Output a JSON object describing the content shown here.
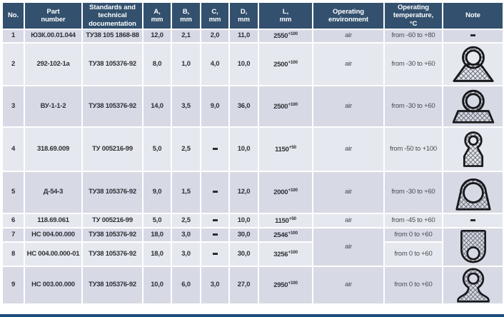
{
  "colors": {
    "header_bg": "#33516e",
    "row_odd": "#d7dae4",
    "row_even": "#e6e8ef",
    "accent_bar": "#1d4e7c",
    "grid": "#ffffff"
  },
  "table": {
    "columns": [
      {
        "key": "no",
        "label": "No."
      },
      {
        "key": "part",
        "label": "Part\nnumber"
      },
      {
        "key": "standard",
        "label": "Standards and\ntechnical\ndocumentation"
      },
      {
        "key": "a",
        "label": "A,\nmm"
      },
      {
        "key": "b",
        "label": "B,\nmm"
      },
      {
        "key": "c",
        "label": "C,\nmm"
      },
      {
        "key": "d",
        "label": "D,\nmm"
      },
      {
        "key": "l",
        "label": "L,\nmm"
      },
      {
        "key": "env",
        "label": "Operating\nenvironment"
      },
      {
        "key": "temp",
        "label": "Operating\ntemperature,\n°C"
      },
      {
        "key": "note",
        "label": "Note"
      }
    ],
    "rows": [
      {
        "no": "1",
        "part": "Ю3К.00.01.044",
        "standard": "ТУ38 105 1868-88",
        "a": "12,0",
        "b": "2,1",
        "c": "2,0",
        "d": "11,0",
        "l": "2550",
        "l_sup": "+100",
        "env": "air",
        "temp": "from -60 to +80",
        "note": {
          "kind": "dash",
          "value": "-"
        }
      },
      {
        "no": "2",
        "part": "292-102-1a",
        "standard": "ТУ38 105376-92",
        "a": "8,0",
        "b": "1,0",
        "c": "4,0",
        "d": "10,0",
        "l": "2500",
        "l_sup": "+100",
        "env": "air",
        "temp": "from -30 to +60",
        "note": {
          "kind": "icon",
          "icon": "ring-over-wedge-seal-profile"
        }
      },
      {
        "no": "3",
        "part": "ВУ-1-1-2",
        "standard": "ТУ38 105376-92",
        "a": "14,0",
        "b": "3,5",
        "c": "9,0",
        "d": "36,0",
        "l": "2500",
        "l_sup": "+100",
        "env": "air",
        "temp": "from -30 to +60",
        "note": {
          "kind": "icon",
          "icon": "ring-over-flat-base-seal-profile"
        }
      },
      {
        "no": "4",
        "part": "318.69.009",
        "standard": "ТУ 005216-99",
        "a": "5,0",
        "b": "2,5",
        "c": "-",
        "d": "10,0",
        "l": "1150",
        "l_sup": "+50",
        "env": "air",
        "temp": "from -50 to +100",
        "note": {
          "kind": "icon",
          "icon": "round-head-tag-seal-profile"
        }
      },
      {
        "no": "5",
        "part": "Д-54-3",
        "standard": "ТУ38 105376-92",
        "a": "9,0",
        "b": "1,5",
        "c": "-",
        "d": "12,0",
        "l": "2000",
        "l_sup": "+100",
        "env": "air",
        "temp": "from -30 to +60",
        "note": {
          "kind": "icon",
          "icon": "dome-trapezoid-ring-seal-profile"
        }
      },
      {
        "no": "6",
        "part": "118.69.061",
        "standard": "ТУ 005216-99",
        "a": "5,0",
        "b": "2,5",
        "c": "-",
        "d": "10,0",
        "l": "1150",
        "l_sup": "+50",
        "env": "air",
        "temp": "from -45 to +60",
        "note": {
          "kind": "dash",
          "value": "-"
        }
      },
      {
        "no": "7",
        "part": "НС 004.00.000",
        "standard": "ТУ38 105376-92",
        "a": "18,0",
        "b": "3,0",
        "c": "-",
        "d": "30,0",
        "l": "2546",
        "l_sup": "+100",
        "env": "air",
        "env_rowspan": 2,
        "temp": "from 0 to +60",
        "note": {
          "kind": "icon",
          "icon": "u-channel-ring-seal-profile",
          "rowspan": 2
        }
      },
      {
        "no": "8",
        "part": "НС 004.00.000-01",
        "standard": "ТУ38 105376-92",
        "a": "18,0",
        "b": "3,0",
        "c": "-",
        "d": "30,0",
        "l": "3256",
        "l_sup": "+100",
        "env": null,
        "temp": "from 0 to +60",
        "note": null
      },
      {
        "no": "9",
        "part": "НС 003.00.000",
        "standard": "ТУ38 105376-92",
        "a": "10,0",
        "b": "6,0",
        "c": "3,0",
        "d": "27,0",
        "l": "2950",
        "l_sup": "+100",
        "env": "air",
        "temp": "from 0 to +60",
        "note": {
          "kind": "icon",
          "icon": "keyhole-flared-seal-profile"
        }
      }
    ]
  }
}
